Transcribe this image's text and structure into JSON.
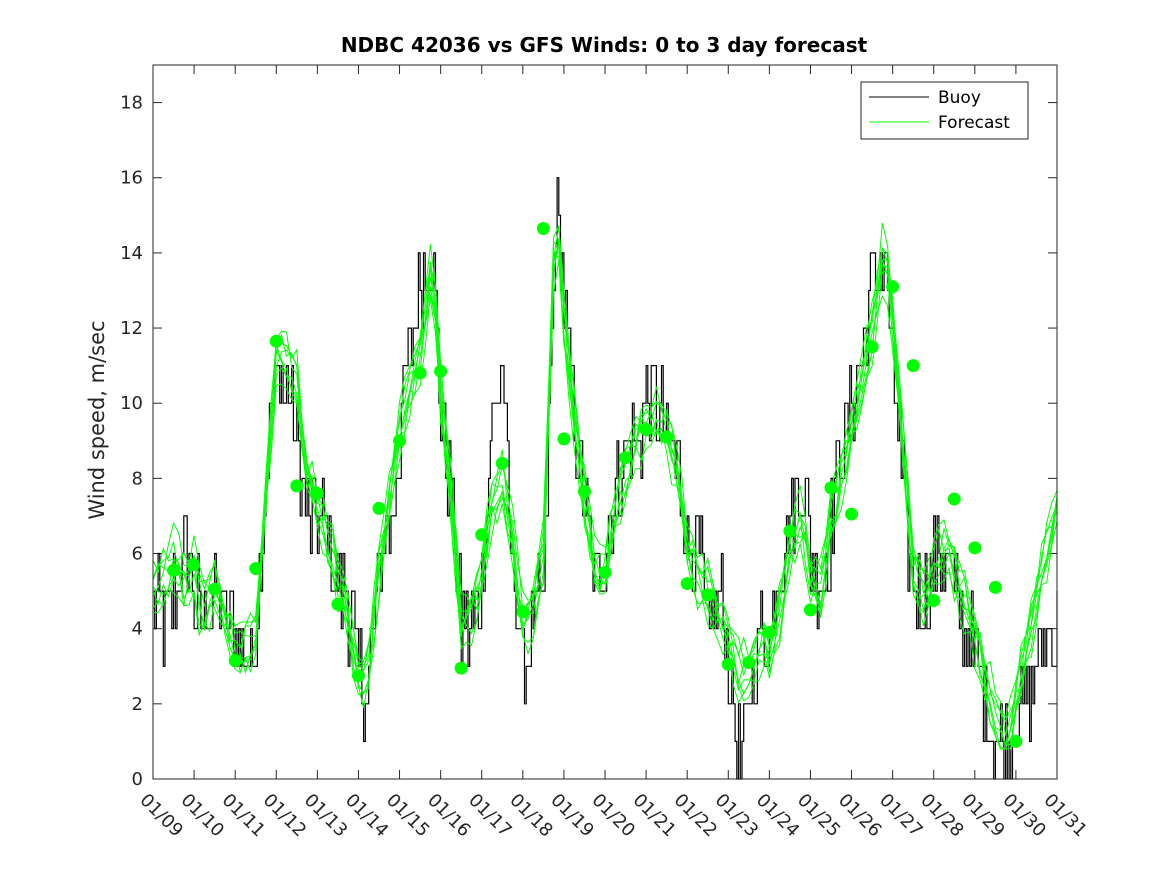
{
  "chart_data": {
    "type": "line",
    "title": "NDBC 42036 vs GFS Winds: 0 to 3 day forecast",
    "xlabel": "",
    "ylabel": "Wind speed, m/sec",
    "xlim": [
      0,
      22
    ],
    "ylim": [
      0,
      19
    ],
    "yticks": [
      0,
      2,
      4,
      6,
      8,
      10,
      12,
      14,
      16,
      18
    ],
    "xtick_labels": [
      "01/09",
      "01/10",
      "01/11",
      "01/12",
      "01/13",
      "01/14",
      "01/15",
      "01/16",
      "01/17",
      "01/18",
      "01/19",
      "01/20",
      "01/21",
      "01/22",
      "01/23",
      "01/24",
      "01/25",
      "01/26",
      "01/27",
      "01/28",
      "01/29",
      "01/30",
      "01/31"
    ],
    "legend": [
      "Buoy",
      "Forecast"
    ],
    "legend_position": "top-right",
    "colors": {
      "buoy": "#000000",
      "forecast": "#00ff00"
    },
    "buoy_keypoints": {
      "x": [
        0,
        0.3,
        0.5,
        0.8,
        1.0,
        1.2,
        1.5,
        2.0,
        2.3,
        2.5,
        2.8,
        3.0,
        3.3,
        3.5,
        3.7,
        4.0,
        4.2,
        4.5,
        4.7,
        5.0,
        5.2,
        5.5,
        5.8,
        6.0,
        6.2,
        6.5,
        6.8,
        7.0,
        7.2,
        7.5,
        7.8,
        8.0,
        8.2,
        8.5,
        8.7,
        9.0,
        9.2,
        9.5,
        9.8,
        10.0,
        10.3,
        10.5,
        10.8,
        11.0,
        11.3,
        11.5,
        11.8,
        12.0,
        12.3,
        12.5,
        12.8,
        13.0,
        13.3,
        13.5,
        13.8,
        14.0,
        14.3,
        14.6,
        14.8,
        15.0,
        15.3,
        15.5,
        15.8,
        16.0,
        16.3,
        16.5,
        16.8,
        17.0,
        17.2,
        17.5,
        17.8,
        18.0,
        18.3,
        18.5,
        18.8,
        19.0,
        19.3,
        19.5,
        19.8,
        20.0,
        20.3,
        20.5,
        20.8,
        21.0,
        21.3,
        21.5,
        22.0
      ],
      "y": [
        5,
        4,
        5,
        6,
        5,
        4,
        5,
        4,
        3,
        4,
        9,
        11,
        10,
        9,
        7,
        7,
        7,
        5,
        5,
        3,
        2,
        6,
        7,
        9,
        11,
        13,
        14,
        10,
        8,
        4,
        4,
        5,
        9,
        11,
        6,
        3,
        4,
        5,
        15,
        13,
        9,
        7,
        5,
        6,
        8,
        9,
        9,
        10,
        10,
        9,
        8,
        6,
        6,
        4,
        5,
        3,
        0,
        3,
        4,
        4,
        6,
        7,
        8,
        6,
        5,
        7,
        9,
        10,
        11,
        13,
        14,
        11,
        7,
        5,
        5,
        6,
        6,
        5,
        4,
        3,
        2,
        1,
        1,
        2,
        2,
        3,
        4
      ]
    },
    "forecast_keypoints": {
      "x": [
        0,
        0.3,
        0.5,
        0.8,
        1.0,
        1.2,
        1.5,
        2.0,
        2.3,
        2.5,
        2.8,
        3.0,
        3.3,
        3.5,
        3.7,
        4.0,
        4.2,
        4.5,
        4.7,
        5.0,
        5.2,
        5.5,
        5.8,
        6.0,
        6.2,
        6.5,
        6.8,
        7.0,
        7.2,
        7.5,
        7.8,
        8.0,
        8.2,
        8.5,
        8.7,
        9.0,
        9.2,
        9.5,
        9.8,
        10.0,
        10.3,
        10.5,
        10.8,
        11.0,
        11.3,
        11.5,
        11.8,
        12.0,
        12.3,
        12.5,
        12.8,
        13.0,
        13.3,
        13.5,
        13.8,
        14.0,
        14.3,
        14.6,
        14.8,
        15.0,
        15.3,
        15.5,
        15.8,
        16.0,
        16.3,
        16.5,
        16.8,
        17.0,
        17.2,
        17.5,
        17.8,
        18.0,
        18.3,
        18.5,
        18.8,
        19.0,
        19.3,
        19.5,
        19.8,
        20.0,
        20.3,
        20.5,
        20.8,
        21.0,
        21.3,
        21.5,
        22.0
      ],
      "y": [
        4.8,
        5.3,
        6.0,
        5.5,
        5.8,
        4.5,
        5.0,
        3.0,
        3.5,
        4.0,
        8.5,
        11.5,
        11.2,
        10.5,
        8.0,
        7.0,
        6.5,
        5.5,
        4.8,
        3.0,
        2.8,
        5.5,
        7.5,
        9.0,
        10.0,
        11.5,
        14.0,
        10.5,
        8.5,
        4.0,
        4.2,
        5.0,
        7.0,
        8.0,
        7.0,
        4.5,
        4.5,
        6.0,
        15.0,
        12.0,
        9.0,
        7.5,
        5.5,
        6.0,
        7.5,
        8.2,
        8.8,
        9.2,
        9.4,
        9.2,
        8.3,
        6.5,
        5.5,
        5.0,
        4.0,
        3.5,
        2.5,
        3.0,
        4.0,
        3.5,
        5.0,
        6.2,
        6.8,
        5.0,
        4.8,
        7.0,
        8.5,
        9.5,
        10.5,
        12.0,
        14.0,
        12.0,
        8.0,
        5.5,
        5.0,
        6.0,
        6.5,
        5.5,
        4.5,
        3.5,
        2.2,
        1.5,
        1.2,
        2.5,
        4.0,
        5.0,
        7.0
      ]
    },
    "forecast_markers": {
      "x": [
        0.5,
        0.98,
        1.5,
        2.0,
        2.5,
        3.0,
        3.5,
        4.0,
        4.5,
        5.0,
        5.5,
        6.0,
        6.5,
        7.0,
        7.5,
        8.0,
        8.5,
        9.0,
        9.5,
        10.0,
        10.5,
        11.0,
        11.5,
        12.0,
        12.5,
        13.0,
        13.5,
        14.0,
        14.5,
        15.0,
        15.5,
        16.0,
        16.5,
        17.0,
        17.5,
        18.0,
        18.5,
        19.0,
        19.5,
        20.0,
        20.5,
        21.0
      ],
      "y": [
        5.55,
        5.7,
        5.05,
        3.15,
        5.6,
        11.65,
        7.8,
        7.6,
        4.65,
        2.75,
        7.2,
        9.0,
        10.8,
        10.85,
        2.95,
        6.5,
        8.4,
        4.45,
        14.65,
        9.05,
        7.65,
        5.5,
        8.55,
        9.3,
        9.1,
        5.2,
        4.9,
        3.05,
        3.1,
        3.9,
        6.6,
        4.5,
        7.75,
        7.05,
        11.5,
        13.1,
        11.0,
        4.75,
        7.45,
        6.15,
        5.1,
        1.0
      ]
    }
  }
}
